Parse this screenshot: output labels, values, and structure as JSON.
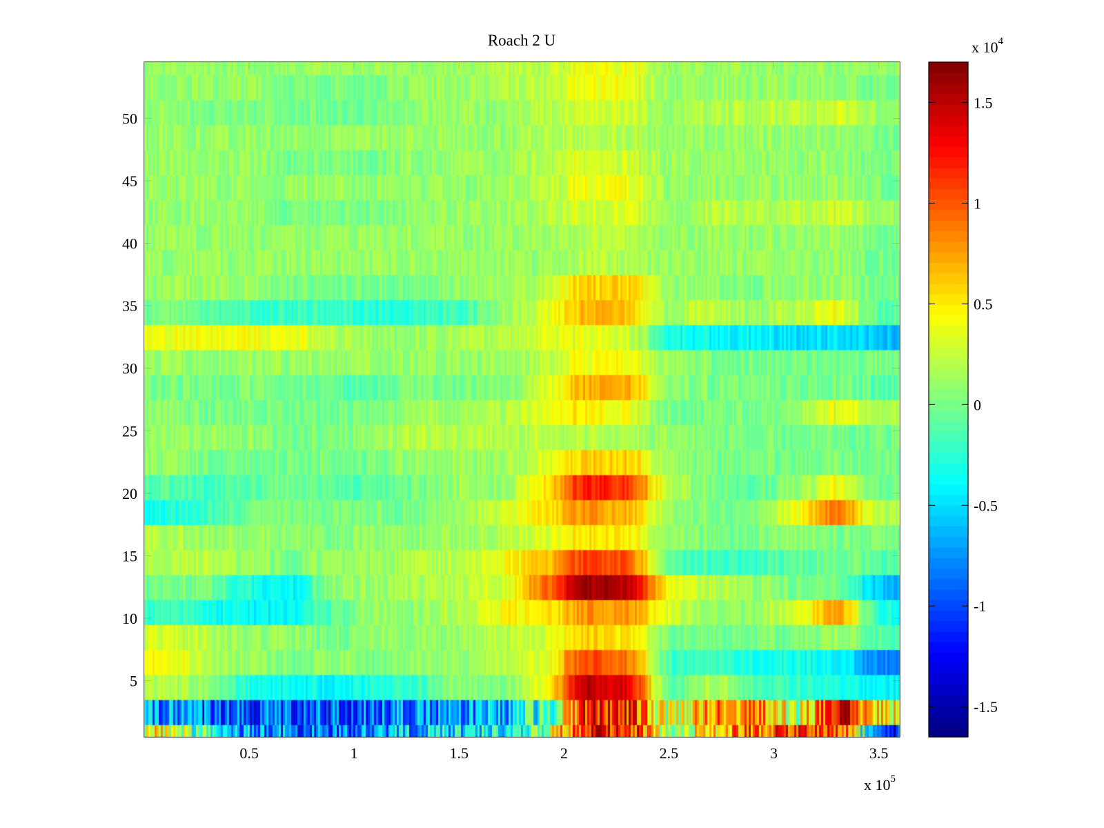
{
  "chart_data": {
    "type": "heatmap",
    "title": "Roach 2 U",
    "xlabel": "",
    "ylabel": "",
    "x_multiplier": {
      "base": "x 10",
      "exponent": "5"
    },
    "c_multiplier": {
      "base": "x 10",
      "exponent": "4"
    },
    "xlim": [
      0,
      3.6
    ],
    "ylim": [
      0.5,
      54.5
    ],
    "clim": [
      -1.65,
      1.7
    ],
    "colormap": "jet",
    "x_ticks": [
      0.5,
      1,
      1.5,
      2,
      2.5,
      3,
      3.5
    ],
    "x_tick_labels": [
      "0.5",
      "1",
      "1.5",
      "2",
      "2.5",
      "3",
      "3.5"
    ],
    "y_ticks": [
      5,
      10,
      15,
      20,
      25,
      30,
      35,
      40,
      45,
      50
    ],
    "y_tick_labels": [
      "5",
      "10",
      "15",
      "20",
      "25",
      "30",
      "35",
      "40",
      "45",
      "50"
    ],
    "c_ticks": [
      -1.5,
      -1,
      -0.5,
      0,
      0.5,
      1,
      1.5
    ],
    "c_tick_labels": [
      "-1.5",
      "-1",
      "-0.5",
      "0",
      "0.5",
      "1",
      "1.5"
    ],
    "x_bin_width": 0.2,
    "spike_x": [
      0.19,
      0.5,
      0.81,
      1.12,
      1.43,
      1.74,
      2.05,
      2.36,
      2.67,
      2.98,
      3.29
    ],
    "bands": [
      {
        "rows": [
          1,
          1
        ],
        "values": [
          0.4,
          -0.3,
          -0.7,
          -0.8,
          -0.9,
          -0.7,
          -0.6,
          -0.5,
          -0.3,
          0.1,
          1.3,
          1.3,
          0.2,
          0.5,
          1.0,
          1.1,
          1.2,
          -1.2
        ]
      },
      {
        "rows": [
          2,
          3
        ],
        "values": [
          -0.8,
          -0.9,
          -0.9,
          -1.0,
          -1.0,
          -0.9,
          -0.8,
          -0.8,
          -0.6,
          -0.2,
          1.2,
          1.2,
          0.1,
          0.8,
          0.9,
          0.1,
          1.5,
          0.5
        ]
      },
      {
        "rows": [
          4,
          5
        ],
        "values": [
          0.2,
          0.1,
          -0.3,
          -0.4,
          -0.4,
          -0.3,
          -0.2,
          0.1,
          0.0,
          0.4,
          1.5,
          1.4,
          -0.1,
          0.2,
          -0.1,
          -0.2,
          -0.3,
          -0.4
        ]
      },
      {
        "rows": [
          6,
          7
        ],
        "values": [
          0.4,
          0.2,
          0.1,
          0.0,
          0.1,
          0.0,
          0.1,
          0.1,
          0.2,
          0.3,
          1.1,
          0.9,
          -0.2,
          -0.2,
          -0.3,
          -0.3,
          -0.4,
          -0.8
        ]
      },
      {
        "rows": [
          8,
          9
        ],
        "values": [
          0.3,
          0.2,
          0.1,
          0.1,
          0.0,
          0.1,
          0.1,
          0.1,
          0.2,
          0.3,
          0.6,
          0.5,
          0.0,
          0.0,
          0.0,
          0.0,
          0.1,
          -0.1
        ]
      },
      {
        "rows": [
          10,
          11
        ],
        "values": [
          -0.2,
          -0.3,
          -0.4,
          -0.4,
          -0.1,
          0.1,
          0.1,
          0.2,
          0.4,
          0.5,
          0.8,
          0.8,
          0.3,
          0.1,
          0.1,
          0.3,
          0.8,
          -0.3
        ]
      },
      {
        "rows": [
          12,
          13
        ],
        "values": [
          0.0,
          0.0,
          -0.3,
          -0.4,
          0.1,
          0.1,
          0.2,
          0.2,
          0.3,
          0.9,
          1.6,
          1.5,
          0.4,
          0.2,
          0.1,
          0.0,
          0.0,
          -0.6
        ]
      },
      {
        "rows": [
          14,
          15
        ],
        "values": [
          0.2,
          0.2,
          0.1,
          0.0,
          0.1,
          0.1,
          0.2,
          0.2,
          0.4,
          0.6,
          1.1,
          1.0,
          -0.1,
          -0.2,
          -0.2,
          -0.1,
          0.0,
          -0.1
        ]
      },
      {
        "rows": [
          16,
          17
        ],
        "values": [
          0.2,
          0.1,
          0.1,
          0.1,
          0.0,
          0.1,
          0.1,
          0.1,
          0.2,
          0.3,
          0.5,
          0.5,
          0.1,
          0.0,
          0.0,
          0.1,
          0.0,
          0.0
        ]
      },
      {
        "rows": [
          18,
          19
        ],
        "values": [
          -0.3,
          -0.2,
          0.0,
          0.0,
          0.0,
          0.0,
          0.0,
          0.1,
          0.3,
          0.5,
          0.8,
          0.7,
          0.1,
          0.0,
          0.0,
          0.4,
          0.9,
          0.2
        ]
      },
      {
        "rows": [
          20,
          21
        ],
        "values": [
          -0.1,
          -0.2,
          -0.1,
          0.0,
          -0.1,
          -0.1,
          0.0,
          0.1,
          0.1,
          0.5,
          1.2,
          1.1,
          0.2,
          0.0,
          -0.1,
          0.1,
          0.4,
          0.0
        ]
      },
      {
        "rows": [
          22,
          23
        ],
        "values": [
          0.1,
          0.0,
          0.0,
          0.0,
          0.0,
          0.0,
          0.1,
          0.1,
          0.1,
          0.3,
          0.6,
          0.6,
          0.1,
          0.0,
          0.0,
          0.0,
          0.0,
          0.0
        ]
      },
      {
        "rows": [
          24,
          25
        ],
        "values": [
          0.1,
          0.1,
          0.1,
          0.0,
          0.0,
          0.1,
          0.2,
          0.2,
          0.2,
          0.2,
          0.2,
          0.2,
          0.1,
          0.0,
          0.0,
          0.0,
          0.0,
          0.0
        ]
      },
      {
        "rows": [
          26,
          27
        ],
        "values": [
          0.1,
          0.0,
          0.0,
          0.0,
          0.0,
          0.0,
          0.1,
          0.1,
          0.2,
          0.3,
          0.5,
          0.4,
          0.0,
          0.0,
          0.0,
          0.1,
          0.4,
          0.2
        ]
      },
      {
        "rows": [
          28,
          29
        ],
        "values": [
          0.0,
          0.0,
          0.0,
          0.0,
          -0.1,
          -0.1,
          0.0,
          0.0,
          0.0,
          0.3,
          0.7,
          0.7,
          0.1,
          0.0,
          0.0,
          0.0,
          0.0,
          -0.1
        ]
      },
      {
        "rows": [
          30,
          31
        ],
        "values": [
          0.1,
          0.1,
          0.1,
          0.1,
          0.1,
          0.1,
          0.1,
          0.1,
          0.1,
          0.2,
          0.4,
          0.4,
          0.1,
          0.0,
          0.0,
          0.0,
          0.0,
          0.0
        ]
      },
      {
        "rows": [
          32,
          33
        ],
        "values": [
          0.4,
          0.4,
          0.4,
          0.4,
          0.2,
          0.1,
          0.1,
          0.2,
          0.2,
          0.3,
          0.4,
          0.3,
          -0.3,
          -0.4,
          -0.4,
          -0.5,
          -0.5,
          -0.6
        ]
      },
      {
        "rows": [
          34,
          35
        ],
        "values": [
          0.0,
          -0.1,
          -0.2,
          -0.2,
          -0.2,
          -0.3,
          -0.2,
          -0.2,
          0.1,
          0.3,
          0.7,
          0.6,
          0.1,
          0.3,
          0.1,
          0.2,
          0.4,
          -0.1
        ]
      },
      {
        "rows": [
          36,
          37
        ],
        "values": [
          0.1,
          0.1,
          0.1,
          0.0,
          0.0,
          0.0,
          0.0,
          0.1,
          0.1,
          0.2,
          0.6,
          0.6,
          0.1,
          0.1,
          0.0,
          0.1,
          0.1,
          0.0
        ]
      },
      {
        "rows": [
          38,
          39
        ],
        "values": [
          0.1,
          0.1,
          0.1,
          0.1,
          0.1,
          0.1,
          0.1,
          0.1,
          0.1,
          0.1,
          0.2,
          0.2,
          0.1,
          0.1,
          0.1,
          0.1,
          0.1,
          0.0
        ]
      },
      {
        "rows": [
          40,
          41
        ],
        "values": [
          0.1,
          0.1,
          0.1,
          0.1,
          0.1,
          0.1,
          0.1,
          0.1,
          0.1,
          0.1,
          0.2,
          0.2,
          0.1,
          0.1,
          0.1,
          0.1,
          0.1,
          0.0
        ]
      },
      {
        "rows": [
          42,
          43
        ],
        "values": [
          0.1,
          0.1,
          0.1,
          0.0,
          0.0,
          0.0,
          0.1,
          0.1,
          0.1,
          0.2,
          0.3,
          0.3,
          0.1,
          0.2,
          0.2,
          0.2,
          0.3,
          0.1
        ]
      },
      {
        "rows": [
          44,
          45
        ],
        "values": [
          0.1,
          0.1,
          0.1,
          0.1,
          0.1,
          0.1,
          0.1,
          0.1,
          0.1,
          0.2,
          0.4,
          0.4,
          0.1,
          0.1,
          0.1,
          0.1,
          0.1,
          0.0
        ]
      },
      {
        "rows": [
          46,
          47
        ],
        "values": [
          0.1,
          0.1,
          0.1,
          0.0,
          0.0,
          0.0,
          0.1,
          0.1,
          0.1,
          0.2,
          0.3,
          0.3,
          0.1,
          0.1,
          0.1,
          0.1,
          0.1,
          0.0
        ]
      },
      {
        "rows": [
          48,
          49
        ],
        "values": [
          0.1,
          0.1,
          0.1,
          0.1,
          0.1,
          0.1,
          0.1,
          0.1,
          0.1,
          0.2,
          0.2,
          0.2,
          0.1,
          0.1,
          0.1,
          0.1,
          0.1,
          0.0
        ]
      },
      {
        "rows": [
          50,
          51
        ],
        "values": [
          0.1,
          0.0,
          0.0,
          0.0,
          0.0,
          0.0,
          0.1,
          0.1,
          0.1,
          0.2,
          0.3,
          0.3,
          0.1,
          0.2,
          0.2,
          0.2,
          0.3,
          0.1
        ]
      },
      {
        "rows": [
          52,
          53
        ],
        "values": [
          0.1,
          0.1,
          0.1,
          0.0,
          0.0,
          0.0,
          0.1,
          0.1,
          0.2,
          0.2,
          0.4,
          0.4,
          0.1,
          0.1,
          0.1,
          0.1,
          0.1,
          0.0
        ]
      },
      {
        "rows": [
          54,
          54
        ],
        "values": [
          0.1,
          0.1,
          0.1,
          0.1,
          0.1,
          0.1,
          0.1,
          0.1,
          0.2,
          0.2,
          0.4,
          0.4,
          0.1,
          0.1,
          0.1,
          0.1,
          0.1,
          0.1
        ]
      }
    ]
  }
}
